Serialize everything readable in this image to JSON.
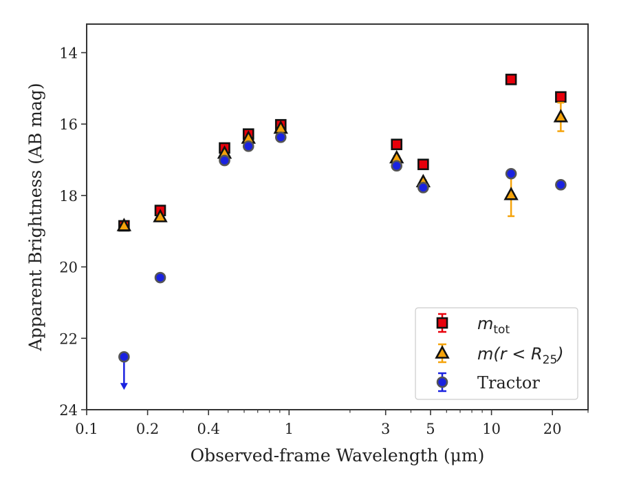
{
  "chart_data": {
    "type": "scatter",
    "xlabel": "Observed-frame Wavelength (μm)",
    "ylabel": "Apparent Brightness (AB mag)",
    "xscale": "log",
    "xlim": [
      0.1,
      30
    ],
    "ylim": [
      24,
      13.2
    ],
    "y_inverted": true,
    "xticks": [
      {
        "value": 0.1,
        "label": "0.1"
      },
      {
        "value": 0.2,
        "label": "0.2"
      },
      {
        "value": 0.4,
        "label": "0.4"
      },
      {
        "value": 1,
        "label": "1"
      },
      {
        "value": 3,
        "label": "3"
      },
      {
        "value": 5,
        "label": "5"
      },
      {
        "value": 10,
        "label": "10"
      },
      {
        "value": 20,
        "label": "20"
      }
    ],
    "yticks": [
      {
        "value": 14,
        "label": "14"
      },
      {
        "value": 16,
        "label": "16"
      },
      {
        "value": 18,
        "label": "18"
      },
      {
        "value": 20,
        "label": "20"
      },
      {
        "value": 22,
        "label": "22"
      },
      {
        "value": 24,
        "label": "24"
      }
    ],
    "grid": false,
    "legend_position": "lower-right",
    "series": [
      {
        "name": "m_tot",
        "legend_main": "m",
        "legend_sub": "tot",
        "marker": "square",
        "fill_color": "#e8000b",
        "edge_color": "#111111",
        "err_color": "#e8000b",
        "points": [
          {
            "x": 0.153,
            "y": 18.85,
            "err": 0.05
          },
          {
            "x": 0.231,
            "y": 18.42,
            "err": 0.05
          },
          {
            "x": 0.48,
            "y": 16.67,
            "err": 0.05
          },
          {
            "x": 0.63,
            "y": 16.28,
            "err": 0.05
          },
          {
            "x": 0.91,
            "y": 16.02,
            "err": 0.05
          },
          {
            "x": 3.4,
            "y": 16.57,
            "err": 0.05
          },
          {
            "x": 4.6,
            "y": 17.13,
            "err": 0.05
          },
          {
            "x": 12.5,
            "y": 14.75,
            "err": 0.05
          },
          {
            "x": 22,
            "y": 15.24,
            "err": 0.05
          }
        ]
      },
      {
        "name": "m(r < R_25)",
        "legend_main": "m(r < R",
        "legend_sub": "25",
        "legend_close": ")",
        "marker": "triangle",
        "fill_color": "#f5a30a",
        "edge_color": "#111111",
        "err_color": "#f5a30a",
        "points": [
          {
            "x": 0.153,
            "y": 18.85,
            "err": 0.05
          },
          {
            "x": 0.231,
            "y": 18.6,
            "err": 0.05
          },
          {
            "x": 0.48,
            "y": 16.82,
            "err": 0.05
          },
          {
            "x": 0.63,
            "y": 16.4,
            "err": 0.05
          },
          {
            "x": 0.91,
            "y": 16.12,
            "err": 0.05
          },
          {
            "x": 3.4,
            "y": 16.95,
            "err": 0.05
          },
          {
            "x": 4.6,
            "y": 17.62,
            "err": 0.05
          },
          {
            "x": 12.5,
            "y": 17.98,
            "err": 0.6
          },
          {
            "x": 22,
            "y": 15.8,
            "err": 0.4
          }
        ]
      },
      {
        "name": "Tractor",
        "legend_main": "Tractor",
        "marker": "circle",
        "fill_color": "#1a22e0",
        "edge_color": "#555555",
        "err_color": "#1a22e0",
        "points": [
          {
            "x": 0.153,
            "y": 22.52,
            "upper_limit": true
          },
          {
            "x": 0.231,
            "y": 20.3,
            "err": 0.05
          },
          {
            "x": 0.48,
            "y": 17.02,
            "err": 0.05
          },
          {
            "x": 0.63,
            "y": 16.62,
            "err": 0.05
          },
          {
            "x": 0.91,
            "y": 16.37,
            "err": 0.05
          },
          {
            "x": 3.4,
            "y": 17.17,
            "err": 0.05
          },
          {
            "x": 4.6,
            "y": 17.78,
            "err": 0.05
          },
          {
            "x": 12.5,
            "y": 17.39,
            "err": 0.05
          },
          {
            "x": 22,
            "y": 17.7,
            "err": 0.05
          }
        ]
      }
    ]
  }
}
